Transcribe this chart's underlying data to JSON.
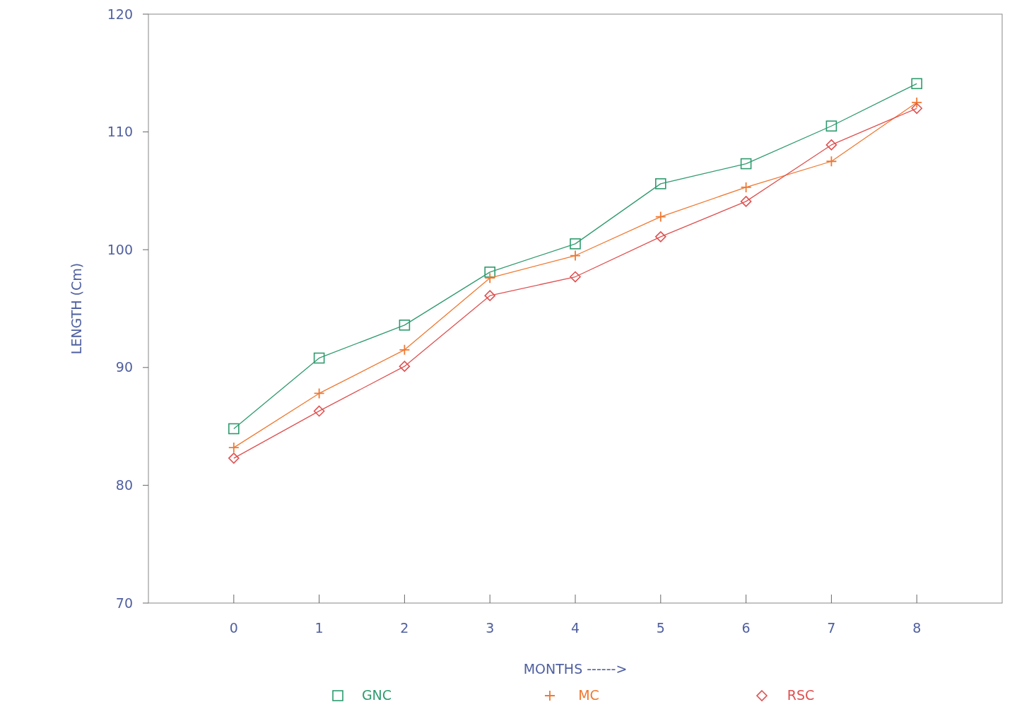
{
  "chart_data": {
    "type": "line",
    "xlabel": "MONTHS ------>",
    "ylabel": "LENGTH (Cm)",
    "x": [
      0,
      1,
      2,
      3,
      4,
      5,
      6,
      7,
      8
    ],
    "xlim": [
      -1,
      9
    ],
    "xticks": [
      0,
      1,
      2,
      3,
      4,
      5,
      6,
      7,
      8
    ],
    "ylim": [
      70,
      120
    ],
    "yticks": [
      70,
      80,
      90,
      100,
      110,
      120
    ],
    "grid": false,
    "legend": "bottom",
    "line_style": "solid",
    "series": [
      {
        "name": "GNC",
        "color": "#2e9b6e",
        "marker": "square",
        "values": [
          84.8,
          90.8,
          93.6,
          98.1,
          100.5,
          105.6,
          107.3,
          110.5,
          114.1
        ]
      },
      {
        "name": "MC",
        "color": "#f07830",
        "marker": "cross",
        "values": [
          83.2,
          87.8,
          91.5,
          97.6,
          99.5,
          102.8,
          105.3,
          107.5,
          112.5
        ]
      },
      {
        "name": "RSC",
        "color": "#e05050",
        "marker": "diamond",
        "values": [
          82.3,
          86.3,
          90.1,
          96.1,
          97.7,
          101.1,
          104.1,
          108.9,
          112.0
        ]
      }
    ]
  }
}
